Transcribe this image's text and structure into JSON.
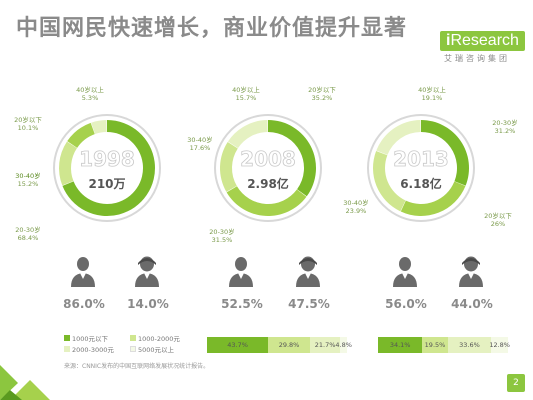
{
  "title": "中国网民快速增长，商业价值提升显著",
  "logo": {
    "mark": "i",
    "name": "Research",
    "sub": "艾瑞咨询集团"
  },
  "colors": {
    "dark": "#7ab929",
    "mid": "#a6d14c",
    "light": "#cfe68f",
    "pale": "#e5f1c1",
    "gray": "#c9c9c9"
  },
  "chart_data": [
    {
      "type": "pie",
      "year": "1998",
      "users": "210万",
      "segments": [
        {
          "name": "20-30岁",
          "label": "20-30岁",
          "value": 68.4,
          "display": "68.4%",
          "color": "#7ab929"
        },
        {
          "name": "30-40岁",
          "label": "30-40岁",
          "value": 15.2,
          "display": "15.2%",
          "color": "#cfe68f"
        },
        {
          "name": "20岁以下",
          "label": "20岁以下",
          "value": 10.1,
          "display": "10.1%",
          "color": "#a6d14c"
        },
        {
          "name": "40岁以上",
          "label": "40岁以上",
          "value": 5.3,
          "display": "5.3%",
          "color": "#e5f1c1"
        }
      ],
      "gender": {
        "male": "86.0%",
        "female": "14.0%"
      },
      "income": null
    },
    {
      "type": "pie",
      "year": "2008",
      "users": "2.98亿",
      "segments": [
        {
          "name": "20岁以下",
          "label": "20岁以下",
          "value": 35.2,
          "display": "35.2%",
          "color": "#7ab929"
        },
        {
          "name": "20-30岁",
          "label": "20-30岁",
          "value": 31.5,
          "display": "31.5%",
          "color": "#a6d14c"
        },
        {
          "name": "30-40岁",
          "label": "30-40岁",
          "value": 17.6,
          "display": "17.6%",
          "color": "#cfe68f"
        },
        {
          "name": "40岁以上",
          "label": "40岁以上",
          "value": 15.7,
          "display": "15.7%",
          "color": "#e5f1c1"
        }
      ],
      "gender": {
        "male": "52.5%",
        "female": "47.5%"
      },
      "income": [
        {
          "label": "43.7%",
          "value": 43.7,
          "color": "#7ab929"
        },
        {
          "label": "29.8%",
          "value": 29.8,
          "color": "#cfe68f"
        },
        {
          "label": "21.7%",
          "value": 21.7,
          "color": "#e5f1c1"
        },
        {
          "label": "4.8%",
          "value": 4.8,
          "color": "#f4f9e6"
        }
      ]
    },
    {
      "type": "pie",
      "year": "2013",
      "users": "6.18亿",
      "segments": [
        {
          "name": "20-30岁",
          "label": "20-30岁",
          "value": 31.2,
          "display": "31.2%",
          "color": "#7ab929"
        },
        {
          "name": "20岁以下",
          "label": "20岁以下",
          "value": 26.0,
          "display": "26%",
          "color": "#a6d14c"
        },
        {
          "name": "30-40岁",
          "label": "30-40岁",
          "value": 23.9,
          "display": "23.9%",
          "color": "#cfe68f"
        },
        {
          "name": "40岁以上",
          "label": "40岁以上",
          "value": 19.1,
          "display": "19.1%",
          "color": "#e5f1c1"
        }
      ],
      "gender": {
        "male": "56.0%",
        "female": "44.0%"
      },
      "income": [
        {
          "label": "34.1%",
          "value": 34.1,
          "color": "#7ab929"
        },
        {
          "label": "19.5%",
          "value": 19.5,
          "color": "#cfe68f"
        },
        {
          "label": "33.6%",
          "value": 33.6,
          "color": "#e5f1c1"
        },
        {
          "label": "12.8%",
          "value": 12.8,
          "color": "#f4f9e6"
        }
      ]
    }
  ],
  "legend": [
    {
      "label": "1000元以下",
      "color": "#7ab929"
    },
    {
      "label": "1000-2000元",
      "color": "#cfe68f"
    },
    {
      "label": "2000-3000元",
      "color": "#e5f1c1"
    },
    {
      "label": "5000元以上",
      "color": "#f4f9e6"
    }
  ],
  "footnote": "来源：CNNIC发布的中国互联网络发展状况统计报告。",
  "page_number": "2"
}
